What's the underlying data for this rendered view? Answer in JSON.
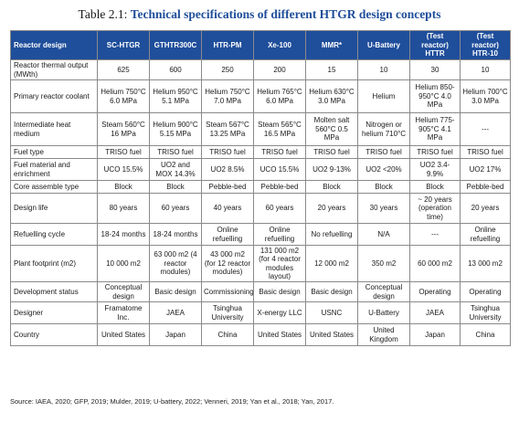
{
  "title": {
    "number": "Table 2.1:",
    "text": "Technical specifications of different HTGR design concepts"
  },
  "columns": [
    "Reactor design",
    "SC-HTGR",
    "GTHTR300C",
    "HTR-PM",
    "Xe-100",
    "MMR*",
    "U-Battery",
    "(Test reactor) HTTR",
    "(Test reactor) HTR-10"
  ],
  "rows": [
    {
      "label": "Reactor thermal output (MWth)",
      "cells": [
        "625",
        "600",
        "250",
        "200",
        "15",
        "10",
        "30",
        "10"
      ]
    },
    {
      "label": "Primary reactor coolant",
      "cells": [
        "Helium 750°C 6.0 MPa",
        "Helium 950°C 5.1 MPa",
        "Helium 750°C 7.0 MPa",
        "Helium 765°C 6.0 MPa",
        "Helium 630°C 3.0 MPa",
        "Helium",
        "Helium 850-950°C 4.0 MPa",
        "Helium 700°C 3.0 MPa"
      ]
    },
    {
      "label": "Intermediate heat medium",
      "cells": [
        "Steam 560°C 16 MPa",
        "Helium 900°C 5.15 MPa",
        "Steam 567°C 13.25 MPa",
        "Steam 565°C 16.5 MPa",
        "Molten salt 560°C 0.5 MPa",
        "Nitrogen or helium 710°C",
        "Helium 775-905°C 4.1 MPa",
        "---"
      ]
    },
    {
      "label": "Fuel type",
      "cells": [
        "TRISO fuel",
        "TRISO fuel",
        "TRISO fuel",
        "TRISO fuel",
        "TRISO fuel",
        "TRISO fuel",
        "TRISO fuel",
        "TRISO fuel"
      ]
    },
    {
      "label": "Fuel material and enrichment",
      "cells": [
        "UCO 15.5%",
        "UO2 and MOX 14.3%",
        "UO2 8.5%",
        "UCO 15.5%",
        "UO2 9-13%",
        "UO2 <20%",
        "UO2 3.4-9.9%",
        "UO2 17%"
      ]
    },
    {
      "label": "Core assemble type",
      "cells": [
        "Block",
        "Block",
        "Pebble-bed",
        "Pebble-bed",
        "Block",
        "Block",
        "Block",
        "Pebble-bed"
      ]
    },
    {
      "label": "Design life",
      "cells": [
        "80 years",
        "60 years",
        "40 years",
        "60 years",
        "20 years",
        "30 years",
        "~ 20 years (operation time)",
        "20 years"
      ]
    },
    {
      "label": "Refuelling cycle",
      "cells": [
        "18-24 months",
        "18-24 months",
        "Online refuelling",
        "Online refuelling",
        "No refuelling",
        "N/A",
        "---",
        "Online refuelling"
      ]
    },
    {
      "label": "Plant footprint (m2)",
      "cells": [
        "10 000 m2",
        "63 000 m2 (4 reactor modules)",
        "43 000 m2 (for 12 reactor modules)",
        "131 000 m2 (for 4 reactor modules layout)",
        "12 000 m2",
        "350 m2",
        "60 000 m2",
        "13 000 m2"
      ]
    },
    {
      "label": "Development status",
      "cells": [
        "Conceptual design",
        "Basic design",
        "Commissioning",
        "Basic design",
        "Basic design",
        "Conceptual design",
        "Operating",
        "Operating"
      ]
    },
    {
      "label": "Designer",
      "cells": [
        "Framatome Inc.",
        "JAEA",
        "Tsinghua University",
        "X-energy LLC",
        "USNC",
        "U-Battery",
        "JAEA",
        "Tsinghua University"
      ]
    },
    {
      "label": "Country",
      "cells": [
        "United States",
        "Japan",
        "China",
        "United States",
        "United States",
        "United Kingdom",
        "Japan",
        "China"
      ]
    }
  ],
  "source": "Source: IAEA, 2020; GFP, 2019; Mulder, 2019; U-battery, 2022; Venneri, 2019; Yan et al., 2018; Yan, 2017."
}
